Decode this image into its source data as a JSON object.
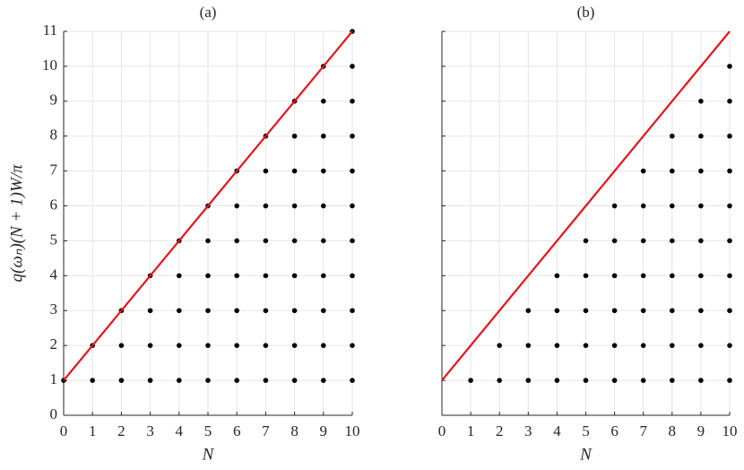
{
  "chart_data": [
    {
      "type": "scatter",
      "title": "(a)",
      "xlabel": "N",
      "ylabel": "q(ωₙ)(N + 1)W/π",
      "xlim": [
        0,
        10
      ],
      "ylim": [
        0,
        11
      ],
      "xticks": [
        0,
        1,
        2,
        3,
        4,
        5,
        6,
        7,
        8,
        9,
        10
      ],
      "yticks": [
        0,
        1,
        2,
        3,
        4,
        5,
        6,
        7,
        8,
        9,
        10,
        11
      ],
      "show_ytick_labels": true,
      "grid": true,
      "series": [
        {
          "style": "markers",
          "color": "#000000",
          "x": [
            0,
            1,
            1,
            2,
            2,
            2,
            3,
            3,
            3,
            3,
            4,
            4,
            4,
            4,
            4,
            5,
            5,
            5,
            5,
            5,
            5,
            6,
            6,
            6,
            6,
            6,
            6,
            6,
            7,
            7,
            7,
            7,
            7,
            7,
            7,
            7,
            8,
            8,
            8,
            8,
            8,
            8,
            8,
            8,
            8,
            9,
            9,
            9,
            9,
            9,
            9,
            9,
            9,
            9,
            9,
            10,
            10,
            10,
            10,
            10,
            10,
            10,
            10,
            10,
            10,
            10
          ],
          "values": [
            1,
            1,
            2,
            1,
            2,
            3,
            1,
            2,
            3,
            4,
            1,
            2,
            3,
            4,
            5,
            1,
            2,
            3,
            4,
            5,
            6,
            1,
            2,
            3,
            4,
            5,
            6,
            7,
            1,
            2,
            3,
            4,
            5,
            6,
            7,
            8,
            1,
            2,
            3,
            4,
            5,
            6,
            7,
            8,
            9,
            1,
            2,
            3,
            4,
            5,
            6,
            7,
            8,
            9,
            10,
            1,
            2,
            3,
            4,
            5,
            6,
            7,
            8,
            9,
            10,
            11
          ]
        },
        {
          "style": "line",
          "color": "#e8131a",
          "x": [
            0,
            10
          ],
          "values": [
            1,
            11
          ]
        }
      ]
    },
    {
      "type": "scatter",
      "title": "(b)",
      "xlabel": "N",
      "xlim": [
        0,
        10
      ],
      "ylim": [
        0,
        11
      ],
      "xticks": [
        0,
        1,
        2,
        3,
        4,
        5,
        6,
        7,
        8,
        9,
        10
      ],
      "yticks": [
        0,
        1,
        2,
        3,
        4,
        5,
        6,
        7,
        8,
        9,
        10,
        11
      ],
      "show_ytick_labels": false,
      "grid": true,
      "series": [
        {
          "style": "markers",
          "color": "#000000",
          "x": [
            1,
            2,
            2,
            3,
            3,
            3,
            4,
            4,
            4,
            4,
            5,
            5,
            5,
            5,
            5,
            6,
            6,
            6,
            6,
            6,
            6,
            7,
            7,
            7,
            7,
            7,
            7,
            7,
            8,
            8,
            8,
            8,
            8,
            8,
            8,
            8,
            9,
            9,
            9,
            9,
            9,
            9,
            9,
            9,
            9,
            10,
            10,
            10,
            10,
            10,
            10,
            10,
            10,
            10,
            10
          ],
          "values": [
            1,
            1,
            2,
            1,
            2,
            3,
            1,
            2,
            3,
            4,
            1,
            2,
            3,
            4,
            5,
            1,
            2,
            3,
            4,
            5,
            6,
            1,
            2,
            3,
            4,
            5,
            6,
            7,
            1,
            2,
            3,
            4,
            5,
            6,
            7,
            8,
            1,
            2,
            3,
            4,
            5,
            6,
            7,
            8,
            9,
            1,
            2,
            3,
            4,
            5,
            6,
            7,
            8,
            9,
            10
          ]
        },
        {
          "style": "line",
          "color": "#e8131a",
          "x": [
            0,
            10
          ],
          "values": [
            1,
            11
          ]
        }
      ]
    }
  ]
}
